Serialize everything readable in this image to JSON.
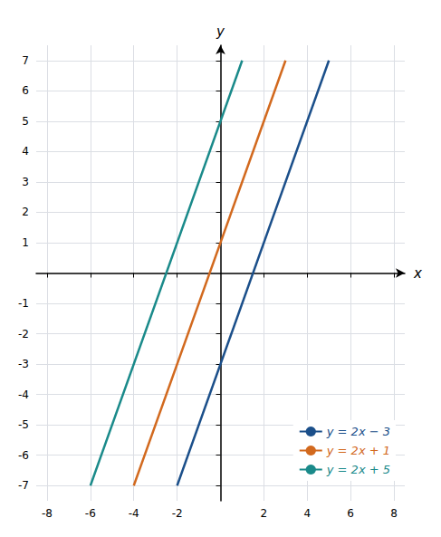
{
  "chart_data": {
    "type": "line",
    "x_label": "x",
    "y_label": "y",
    "series": [
      {
        "name": "y = 2x − 3",
        "color": "#1B4F8A",
        "x": [
          -2,
          5
        ],
        "values": [
          -7,
          7
        ]
      },
      {
        "name": "y = 2x + 1",
        "color": "#D2691E",
        "x": [
          -4,
          3
        ],
        "values": [
          -7,
          7
        ]
      },
      {
        "name": "y = 2x + 5",
        "color": "#1A8A8A",
        "x": [
          -6,
          1
        ],
        "values": [
          -7,
          7
        ]
      }
    ],
    "xlim": [
      -8.5,
      8.5
    ],
    "ylim": [
      -7.5,
      7.5
    ],
    "xticks": [
      -8,
      -6,
      -4,
      -2,
      2,
      4,
      6,
      8
    ],
    "yticks": [
      -7,
      -6,
      -5,
      -4,
      -3,
      -2,
      -1,
      1,
      2,
      3,
      4,
      5,
      6,
      7
    ],
    "grid": true,
    "legend": "lower right"
  }
}
